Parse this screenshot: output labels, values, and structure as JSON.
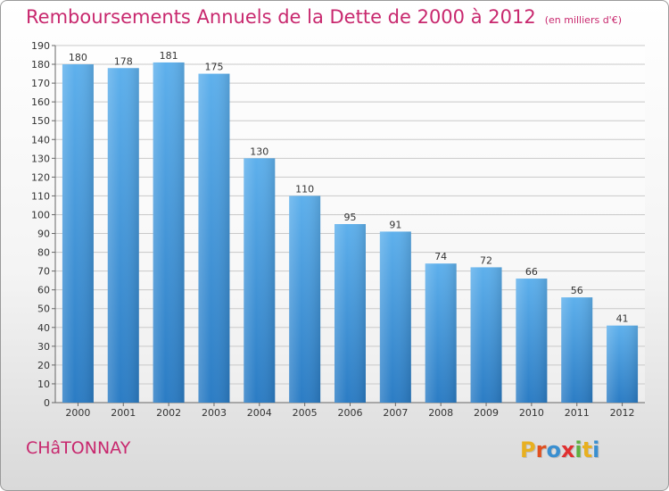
{
  "title": "Remboursements Annuels de la Dette de 2000 à 2012",
  "unit": "(en milliers d'€)",
  "town": "CHâTONNAY",
  "logo": {
    "letters": [
      "P",
      "r",
      "o",
      "x",
      "i",
      "t",
      "i"
    ],
    "colors": [
      "#e8b020",
      "#e05020",
      "#3a8fd0",
      "#e03030",
      "#60b040",
      "#e8b020",
      "#3a8fd0"
    ]
  },
  "chart_data": {
    "type": "bar",
    "categories": [
      "2000",
      "2001",
      "2002",
      "2003",
      "2004",
      "2005",
      "2006",
      "2007",
      "2008",
      "2009",
      "2010",
      "2011",
      "2012"
    ],
    "values": [
      180,
      178,
      181,
      175,
      130,
      110,
      95,
      91,
      74,
      72,
      66,
      56,
      41
    ],
    "ylim": [
      0,
      190
    ],
    "yticks": [
      0,
      10,
      20,
      30,
      40,
      50,
      60,
      70,
      80,
      90,
      100,
      110,
      120,
      130,
      140,
      150,
      160,
      170,
      180,
      190
    ],
    "grid": true,
    "bar_color": "#4a9de0"
  }
}
